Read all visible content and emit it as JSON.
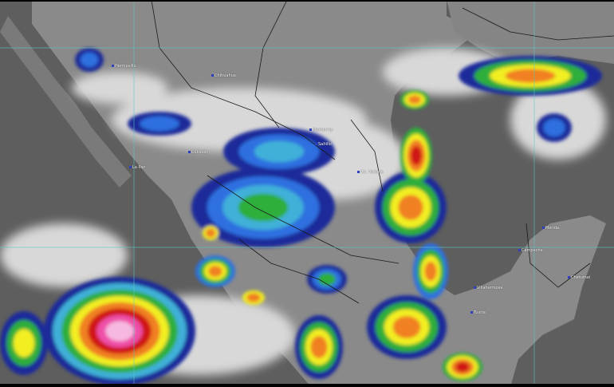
{
  "map": {
    "type": "infrared satellite image with enhanced cloud-top colors",
    "region": "Mexico",
    "palette": {
      "land": "#8a8a8a",
      "ocean": "#5e5e5e",
      "cloud_white": "#d8d8d8",
      "dark_blue": "#1a2a9a",
      "blue": "#2f6fe0",
      "cyan": "#3fb0d8",
      "green": "#2fae3a",
      "yellow": "#f2ee20",
      "orange": "#f08020",
      "red": "#d01818",
      "magenta": "#ee4fa8",
      "pink": "#f6b8e0",
      "grid": "#5ec8c8",
      "borders": "#1a1a1a"
    },
    "labels": [
      "Hermosillo",
      "Chihuahua",
      "La Paz",
      "Culiacán",
      "Monterrey",
      "Saltillo",
      "Cd. Victoria",
      "Mérida",
      "Campeche",
      "Chetumal",
      "Villahermosa",
      "Tuxtla"
    ]
  }
}
